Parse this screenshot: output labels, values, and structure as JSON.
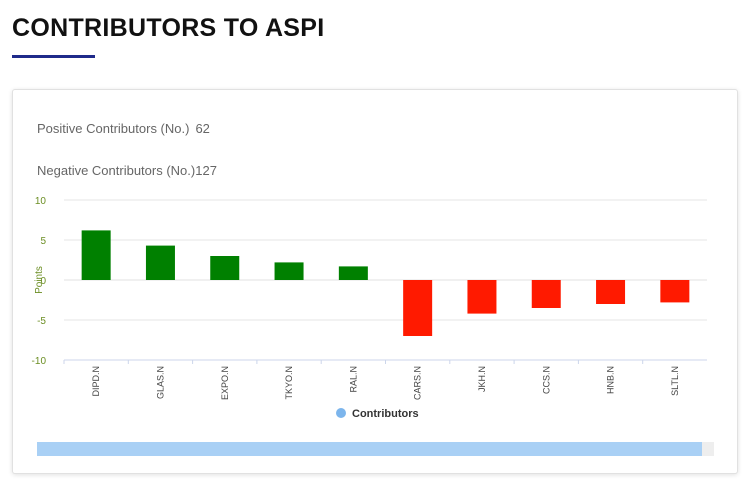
{
  "page": {
    "title": "CONTRIBUTORS TO ASPI"
  },
  "stats": {
    "positive_label": "Positive Contributors (No.)",
    "positive_value": "62",
    "negative_label": "Negative Contributors (No.)",
    "negative_value": "127"
  },
  "colors": {
    "positive": "#008000",
    "negative": "#ff1a00",
    "legend_marker": "#7cb5ec",
    "title_underline": "#1f2a8a",
    "axis_text": "#6b8e23",
    "scrollbar_thumb": "#a9d0f5"
  },
  "chart_data": {
    "type": "bar",
    "categories": [
      "DIPD.N",
      "GLAS.N",
      "EXPO.N",
      "TKYO.N",
      "RAL.N",
      "CARS.N",
      "JKH.N",
      "CCS.N",
      "HNB.N",
      "SLTL.N"
    ],
    "series": [
      {
        "name": "Contributors",
        "values": [
          6.2,
          4.3,
          3.0,
          2.2,
          1.7,
          -7.0,
          -4.2,
          -3.5,
          -3.0,
          -2.8
        ]
      }
    ],
    "ylabel": "Points",
    "ylim": [
      -10,
      10
    ],
    "yticks": [
      "10",
      "5",
      "0",
      "-5",
      "-10"
    ],
    "grid": true,
    "legend": "bottom-center"
  }
}
